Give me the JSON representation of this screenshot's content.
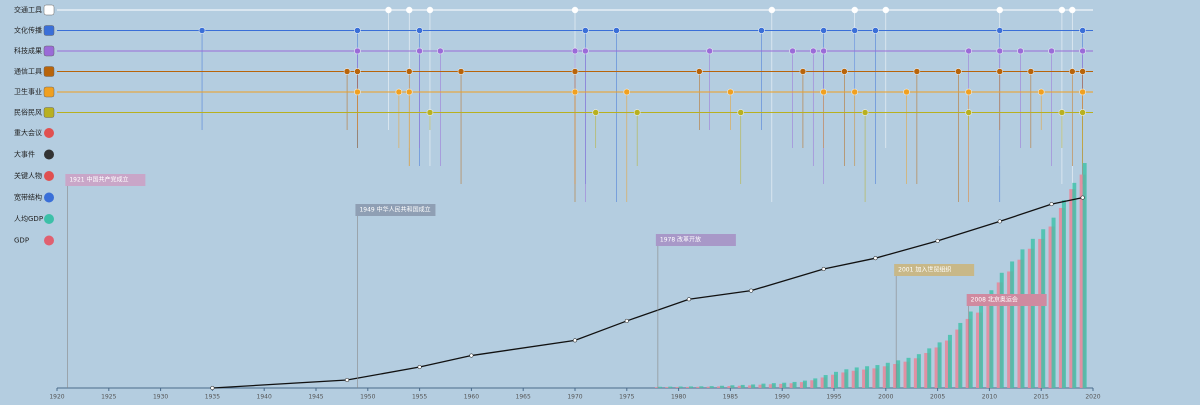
{
  "rows": [
    {
      "label": "交通工具",
      "color": "#ffffff",
      "years": [
        1952,
        1954,
        1956,
        1970,
        1989,
        1997,
        2000,
        2011,
        2017,
        2018
      ]
    },
    {
      "label": "文化传播",
      "color": "#3a6fd8",
      "years": [
        1934,
        1949,
        1955,
        1971,
        1974,
        1988,
        1994,
        1997,
        1999,
        2011,
        2019
      ]
    },
    {
      "label": "科技成果",
      "color": "#9a6bd8",
      "years": [
        1949,
        1955,
        1957,
        1970,
        1971,
        1983,
        1991,
        1993,
        1994,
        2008,
        2011,
        2013,
        2016,
        2019
      ]
    },
    {
      "label": "通信工具",
      "color": "#b8640a",
      "years": [
        1948,
        1949,
        1954,
        1959,
        1970,
        1982,
        1992,
        1996,
        2003,
        2007,
        2011,
        2014,
        2018,
        2019
      ]
    },
    {
      "label": "卫生事业",
      "color": "#f0a020",
      "years": [
        1949,
        1953,
        1954,
        1970,
        1975,
        1985,
        1994,
        1997,
        2002,
        2008,
        2015,
        2019
      ]
    },
    {
      "label": "民俗民风",
      "color": "#b8b020",
      "years": [
        1956,
        1972,
        1976,
        1986,
        1998,
        2008,
        2017,
        2019
      ]
    }
  ],
  "side_labels": [
    "重大会议",
    "大事件",
    "关键人物",
    "宽带结构",
    "人均GDP",
    "GDP"
  ],
  "events": [
    {
      "year": 1921,
      "label": "1921 中国共产党成立"
    },
    {
      "year": 1949,
      "label": "1949 中华人民共和国成立"
    },
    {
      "year": 1978,
      "label": "1978 改革开放"
    },
    {
      "year": 2001,
      "label": "2001 加入世贸组织"
    },
    {
      "year": 2008,
      "label": "2008 北京奥运会"
    }
  ],
  "chart_data": {
    "type": "bar",
    "xlim": [
      1920,
      2020
    ],
    "xticks": [
      1920,
      1925,
      1930,
      1935,
      1940,
      1945,
      1950,
      1955,
      1960,
      1965,
      1970,
      1975,
      1980,
      1985,
      1990,
      1995,
      2000,
      2005,
      2010,
      2015,
      2020
    ],
    "ylim": [
      0,
      110
    ],
    "y2lim": [
      0,
      75000
    ],
    "x": [
      1978,
      1979,
      1980,
      1981,
      1982,
      1983,
      1984,
      1985,
      1986,
      1987,
      1988,
      1989,
      1990,
      1991,
      1992,
      1993,
      1994,
      1995,
      1996,
      1997,
      1998,
      1999,
      2000,
      2001,
      2002,
      2003,
      2004,
      2005,
      2006,
      2007,
      2008,
      2009,
      2010,
      2011,
      2012,
      2013,
      2014,
      2015,
      2016,
      2017,
      2018,
      2019
    ],
    "series": [
      {
        "name": "GDP",
        "color": "#e68a9c",
        "values": [
          0.37,
          0.41,
          0.46,
          0.49,
          0.54,
          0.6,
          0.73,
          0.91,
          1.04,
          1.22,
          1.52,
          1.72,
          1.89,
          2.2,
          2.72,
          3.57,
          4.86,
          6.13,
          7.18,
          7.97,
          8.52,
          9.06,
          10.03,
          11.09,
          12.17,
          13.74,
          16.18,
          18.73,
          21.94,
          27.01,
          31.92,
          34.85,
          41.21,
          48.79,
          53.86,
          59.3,
          64.36,
          68.89,
          74.64,
          83.2,
          91.93,
          98.65
        ]
      },
      {
        "name": "人均GDP",
        "color": "#3cc0a8",
        "axis": "y2",
        "values": [
          385,
          423,
          468,
          497,
          533,
          588,
          702,
          866,
          973,
          1123,
          1378,
          1536,
          1663,
          1912,
          2334,
          3027,
          4081,
          5091,
          5898,
          6481,
          6860,
          7229,
          7942,
          8717,
          9506,
          10666,
          12487,
          14368,
          16738,
          20494,
          24100,
          26180,
          30808,
          36302,
          39874,
          43684,
          47005,
          50028,
          53680,
          59201,
          64644,
          70892
        ]
      }
    ],
    "trend": {
      "x": [
        1935,
        1948,
        1955,
        1960,
        1970,
        1975,
        1981,
        1987,
        1994,
        1999,
        2005,
        2011,
        2016,
        2019
      ],
      "values": [
        0,
        3.7,
        9.7,
        15,
        22,
        31,
        41,
        45,
        55,
        60,
        68,
        77,
        85,
        88
      ],
      "color": "#111111"
    }
  }
}
